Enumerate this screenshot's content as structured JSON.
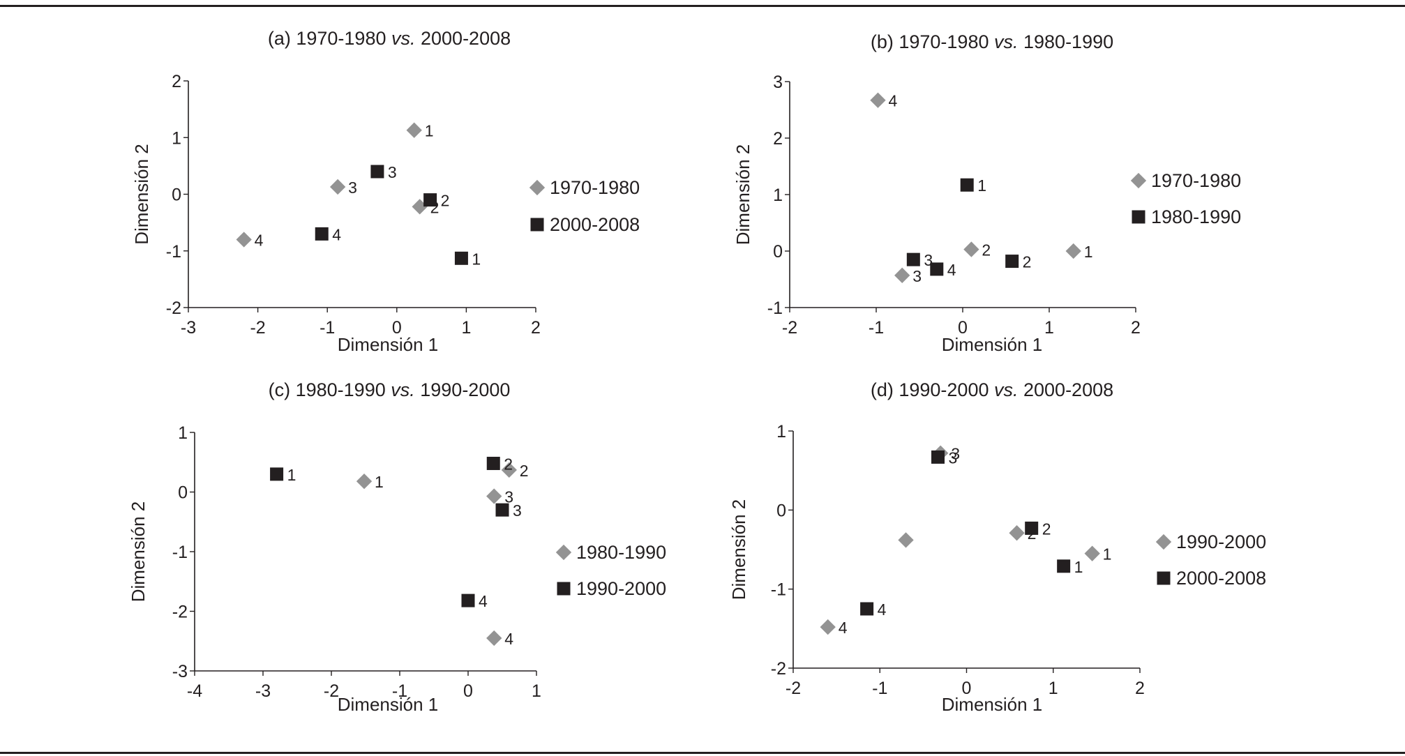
{
  "colors": {
    "series_a": "#939393",
    "series_b": "#231f20",
    "axis": "#231f20"
  },
  "chart_data": [
    {
      "id": "a",
      "type": "scatter",
      "title_prefix": "(a) 1970-1980 ",
      "title_italic": "vs.",
      "title_suffix": " 2000-2008",
      "xlabel": "Dimensión 1",
      "ylabel": "Dimensión 2",
      "xlim": [
        -3,
        2
      ],
      "ylim": [
        -2,
        2
      ],
      "xticks": [
        -3,
        -2,
        -1,
        0,
        1,
        2
      ],
      "yticks": [
        -2,
        -1,
        0,
        1,
        2
      ],
      "legend_position": "right",
      "series": [
        {
          "name": "1970-1980",
          "marker": "diamond-icon",
          "color": "#939393",
          "points": [
            {
              "label": "1",
              "x": 0.25,
              "y": 1.13
            },
            {
              "label": "2",
              "x": 0.33,
              "y": -0.22
            },
            {
              "label": "3",
              "x": -0.85,
              "y": 0.13
            },
            {
              "label": "4",
              "x": -2.2,
              "y": -0.8
            }
          ]
        },
        {
          "name": "2000-2008",
          "marker": "square-icon",
          "color": "#231f20",
          "points": [
            {
              "label": "1",
              "x": 0.93,
              "y": -1.13
            },
            {
              "label": "2",
              "x": 0.48,
              "y": -0.1
            },
            {
              "label": "3",
              "x": -0.28,
              "y": 0.4
            },
            {
              "label": "4",
              "x": -1.08,
              "y": -0.7
            }
          ]
        }
      ]
    },
    {
      "id": "b",
      "type": "scatter",
      "title_prefix": "(b) 1970-1980 ",
      "title_italic": "vs.",
      "title_suffix": " 1980-1990",
      "xlabel": "Dimensión 1",
      "ylabel": "Dimensión 2",
      "xlim": [
        -2,
        2
      ],
      "ylim": [
        -1,
        3
      ],
      "xticks": [
        -2,
        -1,
        0,
        1,
        2
      ],
      "yticks": [
        -1,
        0,
        1,
        2,
        3
      ],
      "legend_position": "right",
      "series": [
        {
          "name": "1970-1980",
          "marker": "diamond-icon",
          "color": "#939393",
          "points": [
            {
              "label": "1",
              "x": 1.28,
              "y": 0.0
            },
            {
              "label": "2",
              "x": 0.1,
              "y": 0.03
            },
            {
              "label": "3",
              "x": -0.7,
              "y": -0.43
            },
            {
              "label": "4",
              "x": -0.98,
              "y": 2.67
            }
          ]
        },
        {
          "name": "1980-1990",
          "marker": "square-icon",
          "color": "#231f20",
          "points": [
            {
              "label": "1",
              "x": 0.05,
              "y": 1.17
            },
            {
              "label": "2",
              "x": 0.57,
              "y": -0.18
            },
            {
              "label": "3",
              "x": -0.57,
              "y": -0.15
            },
            {
              "label": "4",
              "x": -0.3,
              "y": -0.32
            }
          ]
        }
      ]
    },
    {
      "id": "c",
      "type": "scatter",
      "title_prefix": "(c) 1980-1990 ",
      "title_italic": "vs.",
      "title_suffix": " 1990-2000",
      "xlabel": "Dimensión 1",
      "ylabel": "Dimensión 2",
      "xlim": [
        -4,
        1
      ],
      "ylim": [
        -3,
        1
      ],
      "xticks": [
        -4,
        -3,
        -2,
        -1,
        0,
        1
      ],
      "yticks": [
        -3,
        -2,
        -1,
        0,
        1
      ],
      "legend_position": "right",
      "series": [
        {
          "name": "1980-1990",
          "marker": "diamond-icon",
          "color": "#939393",
          "points": [
            {
              "label": "1",
              "x": -1.52,
              "y": 0.18
            },
            {
              "label": "2",
              "x": 0.6,
              "y": 0.37
            },
            {
              "label": "3",
              "x": 0.38,
              "y": -0.07
            },
            {
              "label": "4",
              "x": 0.38,
              "y": -2.45
            }
          ]
        },
        {
          "name": "1990-2000",
          "marker": "square-icon",
          "color": "#231f20",
          "points": [
            {
              "label": "1",
              "x": -2.8,
              "y": 0.3
            },
            {
              "label": "2",
              "x": 0.37,
              "y": 0.48
            },
            {
              "label": "3",
              "x": 0.5,
              "y": -0.3
            },
            {
              "label": "4",
              "x": 0.0,
              "y": -1.82
            }
          ]
        }
      ]
    },
    {
      "id": "d",
      "type": "scatter",
      "title_prefix": "(d) 1990-2000 ",
      "title_italic": "vs.",
      "title_suffix": " 2000-2008",
      "xlabel": "Dimensión 1",
      "ylabel": "Dimensión 2",
      "xlim": [
        -2,
        2
      ],
      "ylim": [
        -2,
        1
      ],
      "xticks": [
        -2,
        -1,
        0,
        1,
        2
      ],
      "yticks": [
        -2,
        -1,
        0,
        1
      ],
      "legend_position": "right",
      "series": [
        {
          "name": "1990-2000",
          "marker": "diamond-icon",
          "color": "#939393",
          "points": [
            {
              "label": "1",
              "x": 1.45,
              "y": -0.55
            },
            {
              "label": "2",
              "x": 0.58,
              "y": -0.29
            },
            {
              "label": "3",
              "x": -0.3,
              "y": 0.72
            },
            {
              "label": "",
              "x": -0.7,
              "y": -0.38
            },
            {
              "label": "4",
              "x": -1.6,
              "y": -1.48
            }
          ]
        },
        {
          "name": "2000-2008",
          "marker": "square-icon",
          "color": "#231f20",
          "points": [
            {
              "label": "1",
              "x": 1.12,
              "y": -0.71
            },
            {
              "label": "2",
              "x": 0.75,
              "y": -0.23
            },
            {
              "label": "3",
              "x": -0.33,
              "y": 0.67
            },
            {
              "label": "4",
              "x": -1.15,
              "y": -1.25
            }
          ]
        }
      ]
    }
  ]
}
